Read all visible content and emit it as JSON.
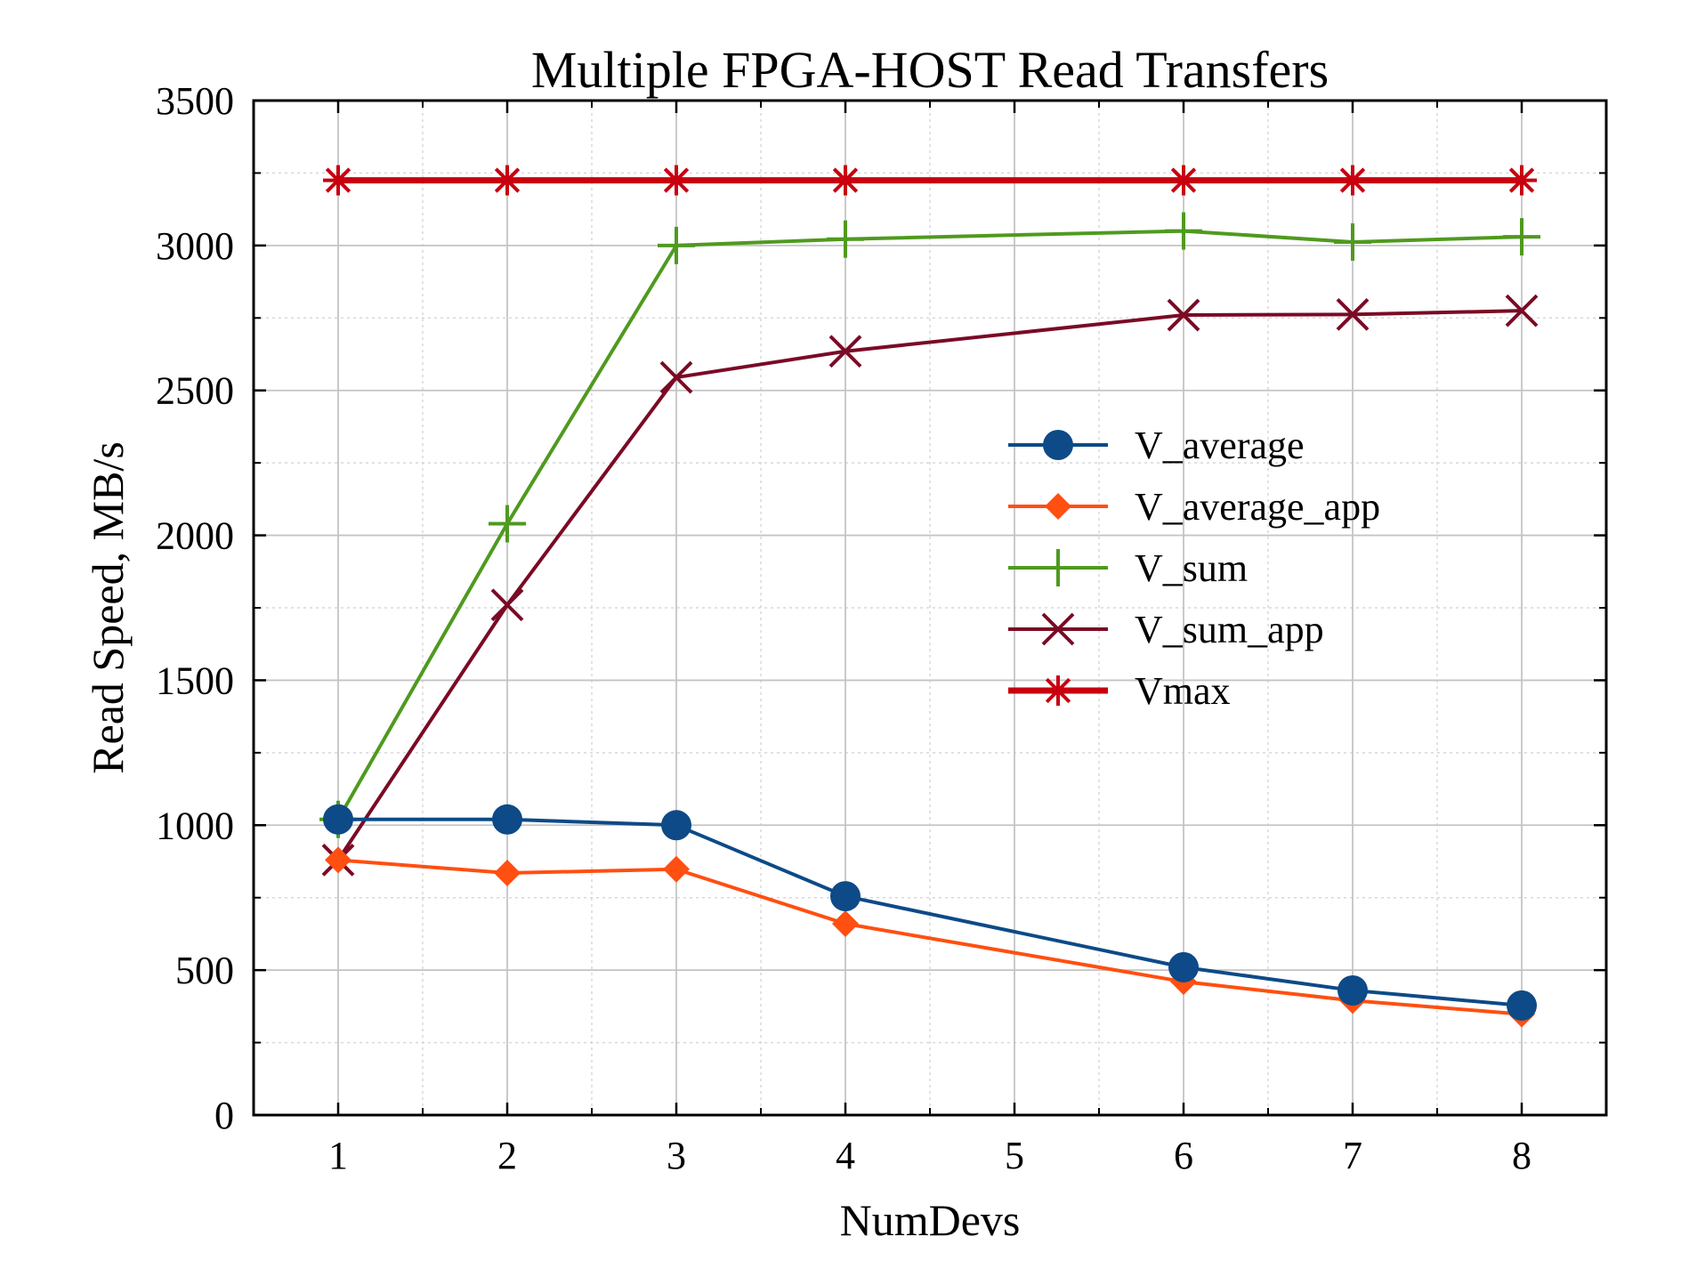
{
  "chart_data": {
    "type": "line",
    "title": "Multiple FPGA-HOST Read Transfers",
    "xlabel": "NumDevs",
    "ylabel": "Read Speed, MB/s",
    "x": [
      1,
      2,
      3,
      4,
      6,
      7,
      8
    ],
    "xlim": [
      0.5,
      8.5
    ],
    "ylim": [
      0,
      3500
    ],
    "xticks": [
      1,
      2,
      3,
      4,
      5,
      6,
      7,
      8
    ],
    "yticks": [
      0,
      500,
      1000,
      1500,
      2000,
      2500,
      3000,
      3500
    ],
    "xtick_labels": [
      "1",
      "2",
      "3",
      "4",
      "5",
      "6",
      "7",
      "8"
    ],
    "ytick_labels": [
      "0",
      "500",
      "1000",
      "1500",
      "2000",
      "2500",
      "3000",
      "3500"
    ],
    "grid": true,
    "legend_position": "center-right",
    "series": [
      {
        "name": "V_average",
        "color": "#0d4a87",
        "marker": "circle",
        "values": [
          1020,
          1020,
          1000,
          755,
          510,
          430,
          378
        ]
      },
      {
        "name": "V_average_app",
        "color": "#ff4f11",
        "marker": "diamond",
        "values": [
          880,
          835,
          848,
          660,
          460,
          395,
          348
        ]
      },
      {
        "name": "V_sum",
        "color": "#4f9a1f",
        "marker": "plus",
        "values": [
          1020,
          2040,
          3000,
          3022,
          3050,
          3012,
          3030
        ]
      },
      {
        "name": "V_sum_app",
        "color": "#7a0a25",
        "marker": "x",
        "values": [
          880,
          1760,
          2545,
          2635,
          2760,
          2762,
          2775
        ]
      },
      {
        "name": "Vmax",
        "color": "#c8000f",
        "marker": "star",
        "values": [
          3225,
          3225,
          3225,
          3225,
          3225,
          3225,
          3225
        ]
      }
    ]
  }
}
